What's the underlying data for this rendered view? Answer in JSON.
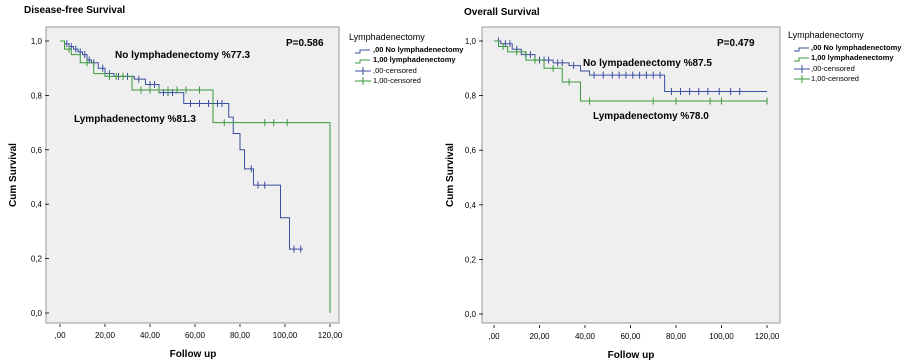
{
  "chart_data": [
    {
      "type": "line",
      "title": "Disease-free Survival",
      "xlabel": "Follow up",
      "ylabel": "Cum Survival",
      "xlim": [
        0,
        120
      ],
      "ylim": [
        0,
        1.0
      ],
      "xticks": [
        ",00",
        "20,00",
        "40,00",
        "60,00",
        "80,00",
        "100,00",
        "120,00"
      ],
      "yticks": [
        "0,0",
        "0,2",
        "0,4",
        "0,6",
        "0,8",
        "1,0"
      ],
      "p_value": "P=0.586",
      "annotations": [
        "No lymphadenectomy %77.3",
        "Lymphadenectomy %81.3"
      ],
      "legend": {
        "title": "Lymphadenectomy",
        "entries": [
          ",00  No lymphadenectomy",
          "1,00  lymphadenectomy",
          ",00-censored",
          "1,00-censored"
        ],
        "placement": "right"
      },
      "series": [
        {
          "name": ",00 No lymphadenectomy",
          "color": "#3a4fa0",
          "x": [
            0,
            2,
            4,
            6,
            8,
            10,
            12,
            14,
            17,
            20,
            24,
            33,
            38,
            44,
            55,
            68,
            75,
            77,
            80,
            82,
            86,
            98,
            102,
            108
          ],
          "y": [
            1.0,
            0.99,
            0.98,
            0.97,
            0.96,
            0.95,
            0.93,
            0.92,
            0.9,
            0.88,
            0.87,
            0.86,
            0.84,
            0.81,
            0.77,
            0.77,
            0.72,
            0.66,
            0.6,
            0.53,
            0.47,
            0.35,
            0.235,
            0.235
          ],
          "censored_x": [
            3,
            5,
            7,
            9,
            11,
            13,
            15,
            19,
            22,
            26,
            28,
            30,
            35,
            40,
            42,
            46,
            48,
            50,
            58,
            62,
            66,
            70,
            72,
            85,
            88,
            91,
            104,
            107
          ]
        },
        {
          "name": "1,00 lymphadenectomy",
          "color": "#3a9a3a",
          "x": [
            0,
            2,
            5,
            9,
            15,
            20,
            32,
            68,
            118,
            120
          ],
          "y": [
            1.0,
            0.97,
            0.95,
            0.92,
            0.88,
            0.87,
            0.82,
            0.7,
            0.7,
            0.0
          ],
          "censored_x": [
            4,
            12,
            22,
            25,
            28,
            36,
            40,
            44,
            48,
            52,
            56,
            62,
            73,
            91,
            95,
            101
          ]
        }
      ]
    },
    {
      "type": "line",
      "title": "Overall Survival",
      "xlabel": "Follow up",
      "ylabel": "Cum Survival",
      "xlim": [
        0,
        120
      ],
      "ylim": [
        0,
        1.0
      ],
      "xticks": [
        ",00",
        "20,00",
        "40,00",
        "60,00",
        "80,00",
        "100,00",
        "120,00"
      ],
      "yticks": [
        "0,0",
        "0,2",
        "0,4",
        "0,6",
        "0,8",
        "1,0"
      ],
      "p_value": "P=0.479",
      "annotations": [
        "No lympadenectomy %87.5",
        "Lympadenectomy %78.0"
      ],
      "legend": {
        "title": "Lymphadenectomy",
        "entries": [
          ",00  No lymphadenectomy",
          "1,00  lymphadenectomy",
          ",00-censored",
          "1,00-censored"
        ],
        "placement": "right"
      },
      "series": [
        {
          "name": ",00 No lymphadenectomy",
          "color": "#3a4fa0",
          "x": [
            0,
            3,
            8,
            12,
            18,
            26,
            33,
            38,
            42,
            75,
            120
          ],
          "y": [
            1.0,
            0.99,
            0.97,
            0.95,
            0.93,
            0.92,
            0.91,
            0.89,
            0.875,
            0.815,
            0.815
          ],
          "censored_x": [
            2,
            5,
            7,
            10,
            14,
            16,
            20,
            22,
            24,
            28,
            30,
            35,
            44,
            48,
            52,
            55,
            58,
            61,
            64,
            67,
            70,
            73,
            78,
            82,
            86,
            90,
            94,
            99,
            104,
            108
          ]
        },
        {
          "name": "1,00 lymphadenectomy",
          "color": "#3a9a3a",
          "x": [
            0,
            2,
            6,
            14,
            22,
            30,
            38,
            120
          ],
          "y": [
            1.0,
            0.98,
            0.96,
            0.93,
            0.9,
            0.85,
            0.78,
            0.78
          ],
          "censored_x": [
            4,
            10,
            18,
            26,
            33,
            42,
            70,
            80,
            95,
            100,
            120
          ]
        }
      ]
    }
  ]
}
